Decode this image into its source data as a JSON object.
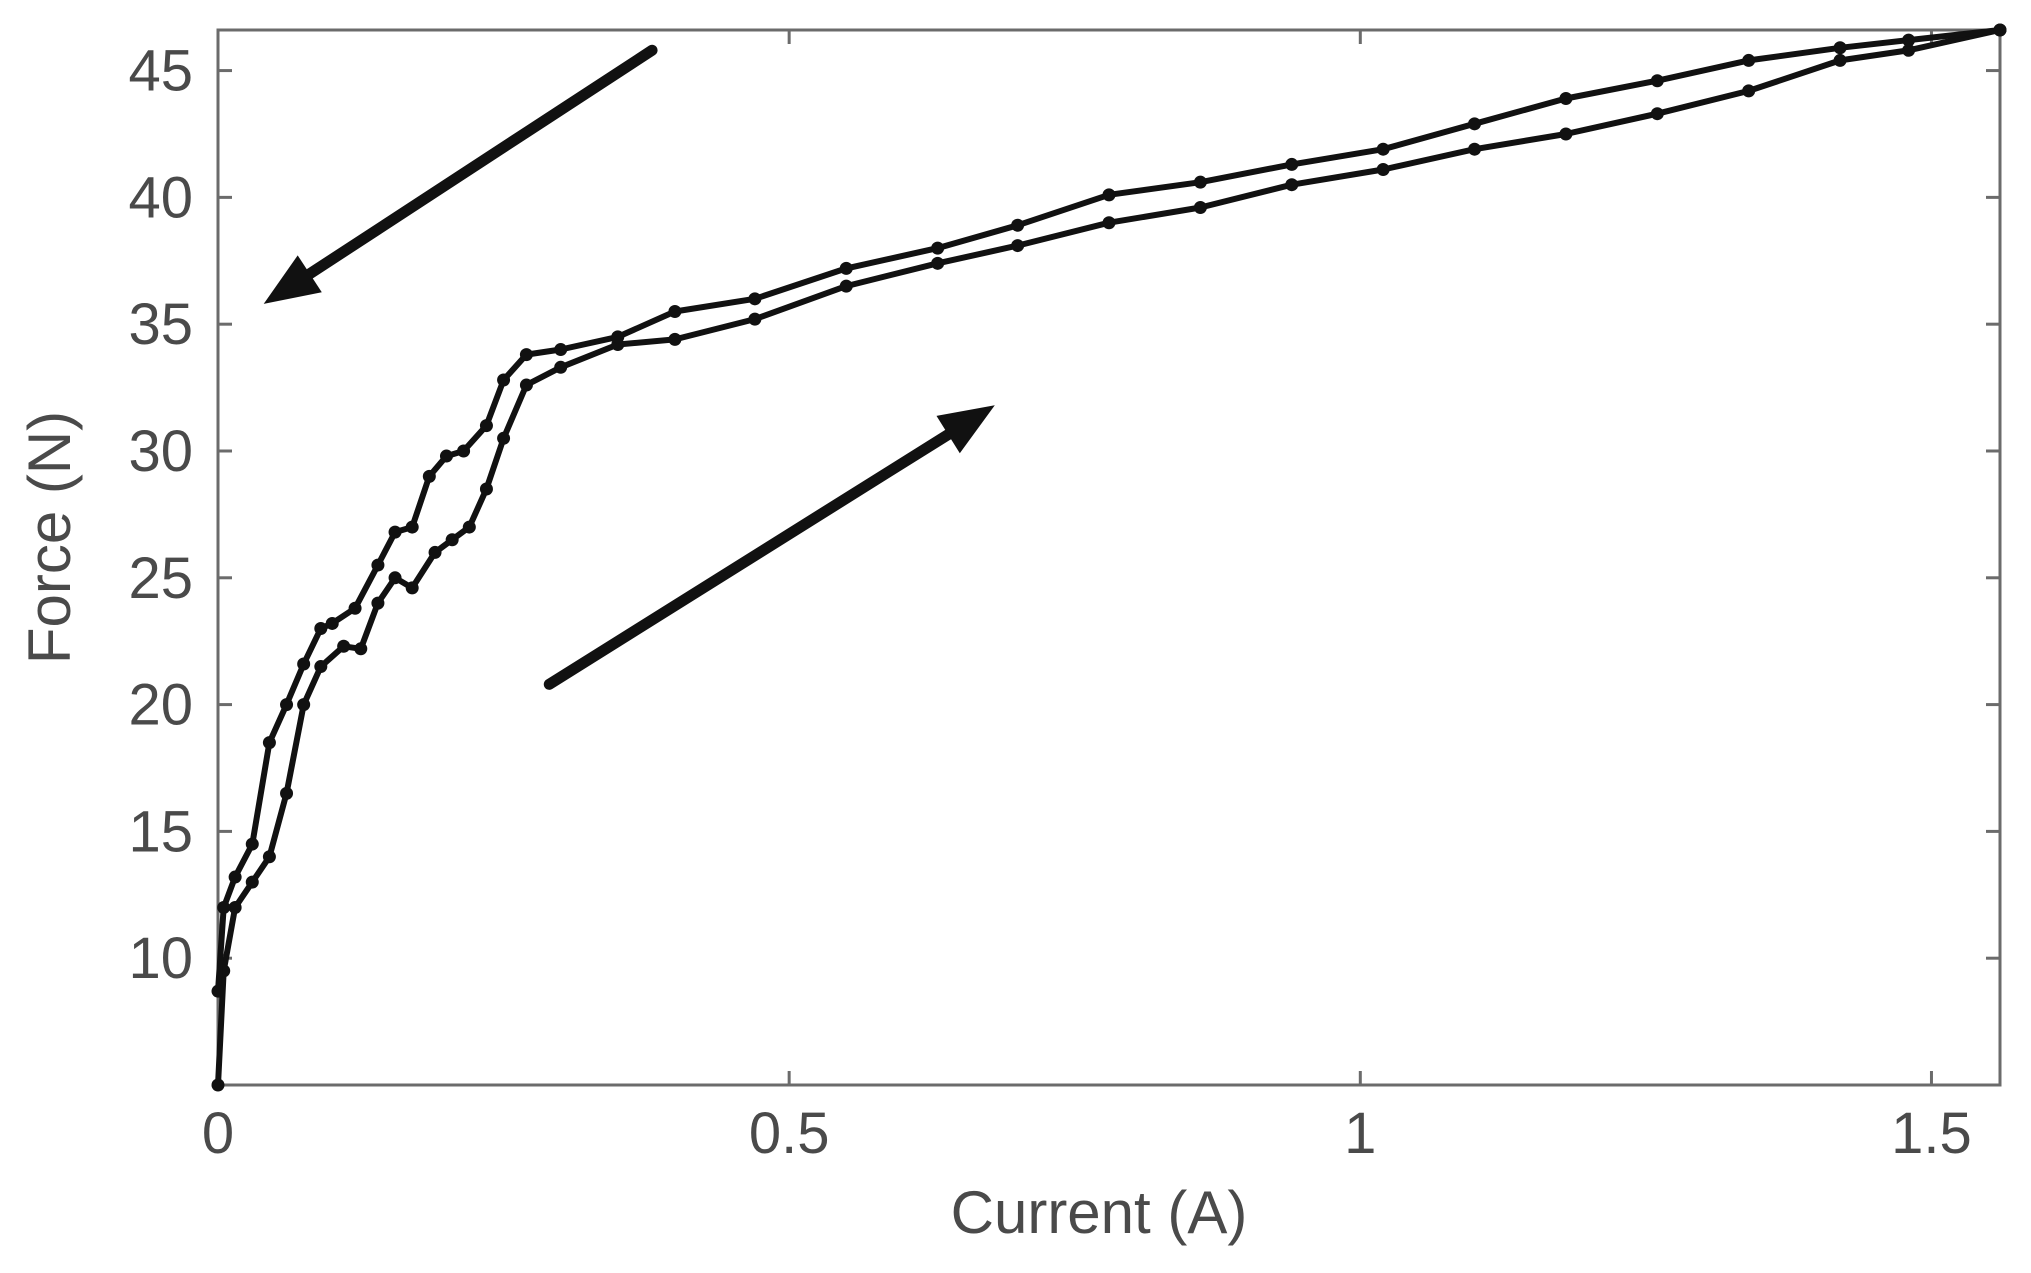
{
  "chart_data": {
    "type": "line",
    "title": "",
    "xlabel": "Current (A)",
    "ylabel": "Force (N)",
    "xlim": [
      0,
      1.56
    ],
    "ylim": [
      5,
      46.6
    ],
    "xticks": [
      0,
      0.5,
      1,
      1.5
    ],
    "xtick_labels": [
      "0",
      "0.5",
      "1",
      "1.5"
    ],
    "yticks": [
      10,
      15,
      20,
      25,
      30,
      35,
      40,
      45
    ],
    "ytick_labels": [
      "10",
      "15",
      "20",
      "25",
      "30",
      "35",
      "40",
      "45"
    ],
    "grid": false,
    "legend": "none",
    "series": [
      {
        "direction": "increasing",
        "x": [
          0,
          0.005,
          0.015,
          0.03,
          0.045,
          0.06,
          0.075,
          0.09,
          0.11,
          0.125,
          0.14,
          0.155,
          0.17,
          0.19,
          0.205,
          0.22,
          0.235,
          0.25,
          0.27,
          0.3,
          0.35,
          0.4,
          0.47,
          0.55,
          0.63,
          0.7,
          0.78,
          0.86,
          0.94,
          1.02,
          1.1,
          1.18,
          1.26,
          1.34,
          1.42,
          1.48,
          1.56
        ],
        "y": [
          5,
          9.5,
          12,
          13,
          14,
          16.5,
          20,
          21.5,
          22.3,
          22.2,
          24,
          25,
          24.6,
          26,
          26.5,
          27,
          28.5,
          30.5,
          32.6,
          33.3,
          34.2,
          34.4,
          35.2,
          36.5,
          37.4,
          38.1,
          39,
          39.6,
          40.5,
          41.1,
          41.9,
          42.5,
          43.3,
          44.2,
          45.4,
          45.8,
          46.6
        ]
      },
      {
        "direction": "decreasing",
        "x": [
          1.56,
          1.48,
          1.42,
          1.34,
          1.26,
          1.18,
          1.1,
          1.02,
          0.94,
          0.86,
          0.78,
          0.7,
          0.63,
          0.55,
          0.47,
          0.4,
          0.35,
          0.3,
          0.27,
          0.25,
          0.235,
          0.215,
          0.2,
          0.185,
          0.17,
          0.155,
          0.14,
          0.12,
          0.1,
          0.09,
          0.075,
          0.06,
          0.045,
          0.03,
          0.015,
          0.005,
          0
        ],
        "y": [
          46.6,
          46.2,
          45.9,
          45.4,
          44.6,
          43.9,
          42.9,
          41.9,
          41.3,
          40.6,
          40.1,
          38.9,
          38,
          37.2,
          36,
          35.5,
          34.5,
          34,
          33.8,
          32.8,
          31,
          30,
          29.8,
          29,
          27,
          26.8,
          25.5,
          23.8,
          23.2,
          23,
          21.6,
          20,
          18.5,
          14.5,
          13.2,
          12,
          8.7
        ]
      }
    ],
    "annotations": [
      {
        "type": "arrow",
        "from": [
          0.38,
          45.8
        ],
        "to": [
          0.04,
          35.8
        ]
      },
      {
        "type": "arrow",
        "from": [
          0.29,
          20.8
        ],
        "to": [
          0.68,
          31.8
        ]
      }
    ]
  }
}
